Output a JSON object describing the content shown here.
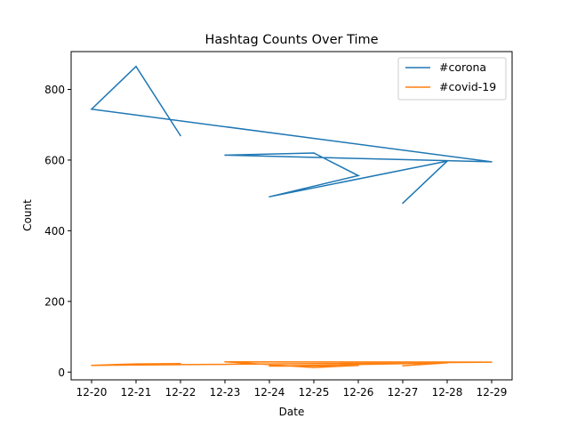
{
  "chart_data": {
    "type": "line",
    "title": "Hashtag Counts Over Time",
    "xlabel": "Date",
    "ylabel": "Count",
    "x_ticks": [
      "12-20",
      "12-21",
      "12-22",
      "12-23",
      "12-24",
      "12-25",
      "12-26",
      "12-27",
      "12-28",
      "12-29"
    ],
    "y_ticks": [
      0,
      200,
      400,
      600,
      800
    ],
    "ylim": [
      -22,
      907
    ],
    "xlim": [
      "12-19",
      "12-30"
    ],
    "grid": false,
    "legend_position": "top-right",
    "series": [
      {
        "name": "#corona",
        "color": "#1f77b4",
        "points": [
          {
            "x": "12-27",
            "y": 478
          },
          {
            "x": "12-28",
            "y": 597
          },
          {
            "x": "12-24",
            "y": 496
          },
          {
            "x": "12-26",
            "y": 556
          },
          {
            "x": "12-25",
            "y": 620
          },
          {
            "x": "12-23",
            "y": 614
          },
          {
            "x": "12-29",
            "y": 595
          },
          {
            "x": "12-20",
            "y": 744
          },
          {
            "x": "12-21",
            "y": 865
          },
          {
            "x": "12-22",
            "y": 669
          }
        ]
      },
      {
        "name": "#covid-19",
        "color": "#ff7f0e",
        "points": [
          {
            "x": "12-27",
            "y": 18
          },
          {
            "x": "12-28",
            "y": 26
          },
          {
            "x": "12-24",
            "y": 17
          },
          {
            "x": "12-26",
            "y": 19
          },
          {
            "x": "12-25",
            "y": 13
          },
          {
            "x": "12-23",
            "y": 29
          },
          {
            "x": "12-29",
            "y": 28
          },
          {
            "x": "12-20",
            "y": 19
          },
          {
            "x": "12-21",
            "y": 23
          },
          {
            "x": "12-22",
            "y": 24
          }
        ]
      }
    ]
  }
}
